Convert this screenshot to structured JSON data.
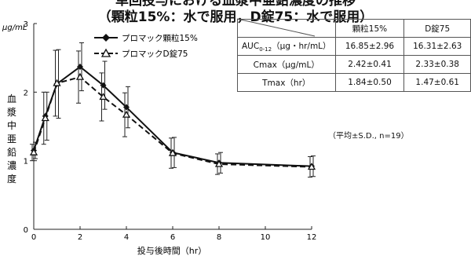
{
  "title": {
    "line1": "単回投与における血漿中亜鉛濃度の推移",
    "line2": "（顆粒15%：水で服用，D錠75：水で服用）"
  },
  "chart_data": {
    "type": "line",
    "ylabel_unit": "μg/mL",
    "ylabel": "血漿中亜鉛濃度",
    "xlabel": "投与後時間（hr）",
    "xlim": [
      0,
      12
    ],
    "ylim": [
      0,
      3
    ],
    "xticks": [
      0,
      2,
      4,
      6,
      8,
      10,
      12
    ],
    "yticks": [
      0,
      1,
      2,
      3
    ],
    "grid": false,
    "legend_position": "top-left",
    "x": [
      0,
      0.5,
      1,
      2,
      3,
      4,
      6,
      8,
      12
    ],
    "series": [
      {
        "name": "プロマック顆粒15%",
        "style": "solid-diamond",
        "values": [
          1.15,
          1.65,
          2.12,
          2.37,
          2.1,
          1.78,
          1.12,
          0.97,
          0.92
        ],
        "sd": [
          0.12,
          0.35,
          0.5,
          0.35,
          0.35,
          0.3,
          0.22,
          0.15,
          0.15
        ]
      },
      {
        "name": "プロマックD錠75",
        "style": "dashed-triangle",
        "values": [
          1.12,
          1.62,
          2.13,
          2.22,
          1.93,
          1.67,
          1.11,
          0.95,
          0.91
        ],
        "sd": [
          0.12,
          0.38,
          0.48,
          0.38,
          0.35,
          0.32,
          0.22,
          0.15,
          0.15
        ]
      }
    ]
  },
  "table": {
    "headers": [
      "",
      "顆粒15%",
      "D錠75"
    ],
    "rows": [
      {
        "label_main": "AUC",
        "label_sub": "0-12",
        "label_rest": "（μg・hr/mL）",
        "values": [
          "16.85±2.96",
          "16.31±2.63"
        ]
      },
      {
        "label_main": "Cmax（μg/mL）",
        "values": [
          "2.42±0.41",
          "2.33±0.38"
        ]
      },
      {
        "label_main": "Tmax（hr）",
        "values": [
          "1.84±0.50",
          "1.47±0.61"
        ]
      }
    ],
    "note": "（平均±S.D., n=19）"
  }
}
